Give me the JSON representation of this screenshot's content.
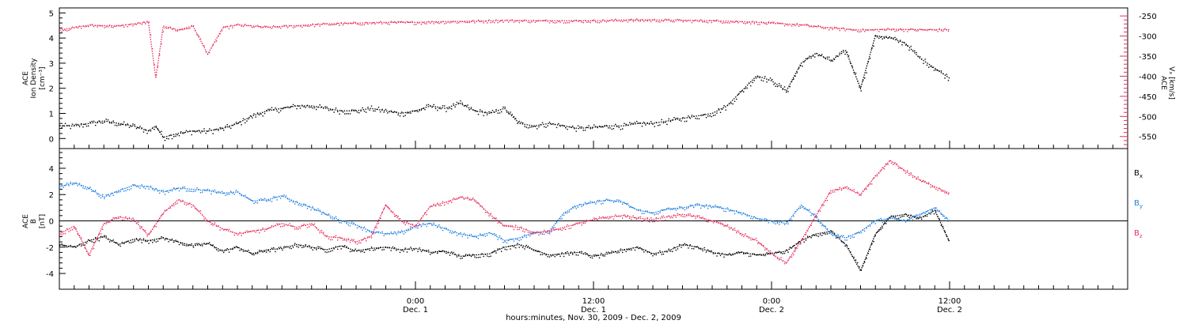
{
  "chart_data": [
    {
      "type": "scatter",
      "panel": "top",
      "left_axis": {
        "title_lines": [
          "ACE",
          "Ion Density"
        ],
        "unit": "[cm⁻³]",
        "ylim": [
          -0.4,
          5.2
        ],
        "ticks": [
          0,
          1,
          2,
          3,
          4,
          5
        ],
        "tick_labels": [
          "0",
          "1",
          "2",
          "3",
          "4",
          "5"
        ]
      },
      "right_axis": {
        "title_lines": [
          "ACE",
          "Vₓ [km/s]"
        ],
        "ylim": [
          -580,
          -230
        ],
        "ticks": [
          -250,
          -300,
          -350,
          -400,
          -450,
          -500,
          -550
        ],
        "tick_labels": [
          "-250",
          "-300",
          "-350",
          "-400",
          "-450",
          "-500",
          "-550"
        ],
        "color": "#e8305f"
      },
      "series": [
        {
          "key": "density",
          "axis": "left",
          "color": "#000000",
          "x_hours": [
            -24,
            -23,
            -22,
            -21,
            -20,
            -19,
            -18,
            -17.5,
            -17,
            -16,
            -15,
            -14,
            -13,
            -12,
            -11,
            -10,
            -9,
            -8,
            -7,
            -6,
            -5,
            -4,
            -3,
            -2,
            -1,
            0,
            1,
            2,
            3,
            4,
            5,
            6,
            7,
            8,
            9,
            10,
            11,
            12,
            13,
            14,
            15,
            16,
            17,
            18,
            19,
            20,
            21,
            22,
            23,
            24,
            25,
            26,
            27,
            28,
            29,
            30,
            31,
            32,
            33,
            34,
            35,
            36
          ],
          "values": [
            0.5,
            0.5,
            0.6,
            0.7,
            0.6,
            0.5,
            0.3,
            0.5,
            0.05,
            0.2,
            0.3,
            0.3,
            0.4,
            0.6,
            0.9,
            1.1,
            1.2,
            1.3,
            1.3,
            1.2,
            1.1,
            1.1,
            1.2,
            1.1,
            1.0,
            1.1,
            1.3,
            1.2,
            1.4,
            1.1,
            1.0,
            1.2,
            0.6,
            0.5,
            0.6,
            0.5,
            0.4,
            0.45,
            0.5,
            0.5,
            0.6,
            0.6,
            0.7,
            0.8,
            0.9,
            1.0,
            1.3,
            1.9,
            2.5,
            2.3,
            1.9,
            3.0,
            3.4,
            3.1,
            3.5,
            2.0,
            4.1,
            4.0,
            3.8,
            3.2,
            2.8,
            2.4
          ]
        },
        {
          "key": "vx",
          "axis": "right",
          "color": "#e8305f",
          "x_hours": [
            -24,
            -22,
            -20,
            -18,
            -17.5,
            -17,
            -16,
            -15,
            -14,
            -13,
            -12,
            -10,
            -8,
            -6,
            -4,
            -2,
            0,
            2,
            4,
            6,
            8,
            10,
            12,
            14,
            16,
            18,
            20,
            22,
            24,
            26,
            28,
            30,
            32,
            34,
            36
          ],
          "values": [
            -285,
            -273,
            -275,
            -265,
            -405,
            -275,
            -285,
            -275,
            -345,
            -280,
            -272,
            -278,
            -274,
            -270,
            -268,
            -266,
            -266,
            -264,
            -263,
            -261,
            -262,
            -262,
            -262,
            -260,
            -260,
            -261,
            -262,
            -264,
            -268,
            -272,
            -280,
            -285,
            -283,
            -284,
            -284
          ]
        }
      ]
    },
    {
      "type": "scatter",
      "panel": "bottom",
      "left_axis": {
        "title_lines": [
          "ACE",
          "B"
        ],
        "unit": "[nT]",
        "ylim": [
          -5.2,
          5.5
        ],
        "ticks": [
          -4,
          -2,
          0,
          2,
          4
        ],
        "tick_labels": [
          "-4",
          "-2",
          "0",
          "2",
          "4"
        ]
      },
      "zero_line": true,
      "series": [
        {
          "key": "bx",
          "name": "Bx",
          "color": "#000000",
          "x_hours": [
            -24,
            -23,
            -22,
            -21,
            -20,
            -19,
            -18,
            -17,
            -16,
            -15,
            -14,
            -13,
            -12,
            -11,
            -10,
            -9,
            -8,
            -7,
            -6,
            -5,
            -4,
            -3,
            -2,
            -1,
            0,
            1,
            2,
            3,
            4,
            5,
            6,
            7,
            8,
            9,
            10,
            11,
            12,
            13,
            14,
            15,
            16,
            17,
            18,
            19,
            20,
            21,
            22,
            23,
            24,
            25,
            26,
            27,
            28,
            29,
            30,
            31,
            32,
            33,
            34,
            35,
            36
          ],
          "values": [
            -1.8,
            -2.0,
            -1.5,
            -1.2,
            -1.8,
            -1.4,
            -1.5,
            -1.3,
            -1.6,
            -1.9,
            -1.7,
            -2.3,
            -2.0,
            -2.5,
            -2.2,
            -2.1,
            -1.8,
            -2.0,
            -2.2,
            -1.9,
            -2.3,
            -2.1,
            -2.0,
            -2.2,
            -2.1,
            -2.4,
            -2.3,
            -2.7,
            -2.6,
            -2.5,
            -2.0,
            -1.8,
            -2.2,
            -2.6,
            -2.5,
            -2.4,
            -2.7,
            -2.5,
            -2.2,
            -2.0,
            -2.5,
            -2.3,
            -1.8,
            -2.0,
            -2.4,
            -2.6,
            -2.4,
            -2.6,
            -2.5,
            -2.3,
            -1.5,
            -1.0,
            -0.8,
            -1.8,
            -3.8,
            -1.0,
            0.3,
            0.5,
            0.2,
            0.8,
            -1.6
          ]
        },
        {
          "key": "by",
          "name": "By",
          "color": "#1f7fe0",
          "x_hours": [
            -24,
            -23,
            -22,
            -21,
            -20,
            -19,
            -18,
            -17,
            -16,
            -15,
            -14,
            -13,
            -12,
            -11,
            -10,
            -9,
            -8,
            -7,
            -6,
            -5,
            -4,
            -3,
            -2,
            -1,
            0,
            1,
            2,
            3,
            4,
            5,
            6,
            7,
            8,
            9,
            10,
            11,
            12,
            13,
            14,
            15,
            16,
            17,
            18,
            19,
            20,
            21,
            22,
            23,
            24,
            25,
            26,
            27,
            28,
            29,
            30,
            31,
            32,
            33,
            34,
            35,
            36
          ],
          "values": [
            2.6,
            2.9,
            2.5,
            1.8,
            2.3,
            2.7,
            2.6,
            2.2,
            2.5,
            2.4,
            2.3,
            2.1,
            2.2,
            1.5,
            1.6,
            1.9,
            1.4,
            1.0,
            0.5,
            0.0,
            -0.3,
            -0.8,
            -1.0,
            -0.9,
            -0.4,
            -0.2,
            -0.6,
            -1.0,
            -1.2,
            -0.9,
            -1.5,
            -1.3,
            -0.9,
            -0.8,
            0.6,
            1.2,
            1.4,
            1.6,
            1.4,
            0.8,
            0.6,
            0.9,
            1.0,
            1.2,
            1.1,
            0.9,
            0.6,
            0.2,
            0.0,
            -0.2,
            1.2,
            0.3,
            -1.0,
            -1.3,
            -0.8,
            0.0,
            0.2,
            0.0,
            0.5,
            1.0,
            0.0
          ]
        },
        {
          "key": "bz",
          "name": "Bz",
          "color": "#e8305f",
          "x_hours": [
            -24,
            -23,
            -22,
            -21,
            -20,
            -19,
            -18,
            -17,
            -16,
            -15,
            -14,
            -13,
            -12,
            -11,
            -10,
            -9,
            -8,
            -7,
            -6,
            -5,
            -4,
            -3,
            -2,
            -1,
            0,
            1,
            2,
            3,
            4,
            5,
            6,
            7,
            8,
            9,
            10,
            11,
            12,
            13,
            14,
            15,
            16,
            17,
            18,
            19,
            20,
            21,
            22,
            23,
            24,
            25,
            26,
            27,
            28,
            29,
            30,
            31,
            32,
            33,
            34,
            35,
            36
          ],
          "values": [
            -1.0,
            -0.4,
            -2.6,
            -0.2,
            0.3,
            0.1,
            -1.1,
            0.6,
            1.6,
            1.2,
            0.0,
            -0.6,
            -1.0,
            -0.8,
            -0.6,
            -0.2,
            -0.5,
            -0.2,
            -1.2,
            -1.3,
            -1.6,
            -1.2,
            1.2,
            0.0,
            -0.4,
            1.1,
            1.4,
            1.8,
            1.6,
            0.5,
            -0.4,
            -0.5,
            -0.9,
            -0.8,
            -0.5,
            -0.2,
            0.1,
            0.3,
            0.4,
            0.2,
            0.1,
            0.3,
            0.5,
            0.3,
            0.0,
            -0.4,
            -1.0,
            -1.5,
            -2.5,
            -3.2,
            -1.5,
            0.4,
            2.3,
            2.5,
            2.0,
            3.4,
            4.6,
            3.8,
            3.1,
            2.6,
            2.1
          ]
        }
      ]
    }
  ],
  "x_axis": {
    "range_hours": [
      -24,
      48
    ],
    "major_ticks": [
      {
        "hour": 0,
        "time": "0:00",
        "date": "Dec. 1"
      },
      {
        "hour": 12,
        "time": "12:00",
        "date": "Dec. 1"
      },
      {
        "hour": 24,
        "time": "0:00",
        "date": "Dec. 2"
      },
      {
        "hour": 36,
        "time": "12:00",
        "date": "Dec. 2"
      }
    ],
    "minor_tick_step_hours": 1,
    "title": "hours:minutes, Nov. 30, 2009 - Dec. 2, 2009"
  },
  "legend": {
    "bx": {
      "base": "B",
      "sub": "x"
    },
    "by": {
      "base": "B",
      "sub": "y"
    },
    "bz": {
      "base": "B",
      "sub": "z"
    }
  }
}
